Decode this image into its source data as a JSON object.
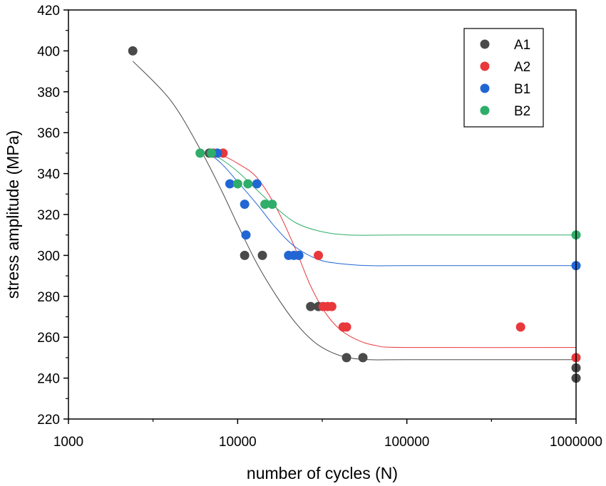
{
  "chart_data": {
    "type": "scatter",
    "xlabel": "number of cycles (N)",
    "ylabel": "stress amplitude (MPa)",
    "xscale": "log",
    "xlim": [
      1000,
      1000000
    ],
    "ylim": [
      220,
      420
    ],
    "x_ticks": [
      1000,
      10000,
      100000,
      1000000
    ],
    "x_tick_labels": [
      "1000",
      "10000",
      "100000",
      "1000000"
    ],
    "y_ticks": [
      220,
      240,
      260,
      280,
      300,
      320,
      340,
      360,
      380,
      400,
      420
    ],
    "y_tick_labels": [
      "220",
      "240",
      "260",
      "280",
      "300",
      "320",
      "340",
      "360",
      "380",
      "400",
      "420"
    ],
    "legend_position": "top-right",
    "grid": false,
    "series": [
      {
        "name": "A1",
        "color": "#4a4a4a",
        "points": [
          [
            2400,
            400
          ],
          [
            6800,
            350
          ],
          [
            11000,
            300
          ],
          [
            14000,
            300
          ],
          [
            27000,
            275
          ],
          [
            30000,
            275
          ],
          [
            44000,
            250
          ],
          [
            55000,
            250
          ],
          [
            1000000,
            245
          ],
          [
            1000000,
            240
          ]
        ],
        "fit_curve": [
          [
            2400,
            395
          ],
          [
            4000,
            376
          ],
          [
            6000,
            352
          ],
          [
            8000,
            332
          ],
          [
            10000,
            315
          ],
          [
            13000,
            296
          ],
          [
            17000,
            280
          ],
          [
            22000,
            267
          ],
          [
            28000,
            258
          ],
          [
            35000,
            253
          ],
          [
            45000,
            250
          ],
          [
            60000,
            249
          ],
          [
            100000,
            249
          ],
          [
            1000000,
            249
          ]
        ]
      },
      {
        "name": "A2",
        "color": "#e8383b",
        "points": [
          [
            7200,
            350
          ],
          [
            8200,
            350
          ],
          [
            30000,
            300
          ],
          [
            32000,
            275
          ],
          [
            34000,
            275
          ],
          [
            36000,
            275
          ],
          [
            42000,
            265
          ],
          [
            44000,
            265
          ],
          [
            470000,
            265
          ],
          [
            1000000,
            250
          ]
        ],
        "fit_curve": [
          [
            6500,
            350
          ],
          [
            8000,
            349
          ],
          [
            10000,
            345
          ],
          [
            13000,
            338
          ],
          [
            17000,
            323
          ],
          [
            22000,
            303
          ],
          [
            27000,
            285
          ],
          [
            33000,
            272
          ],
          [
            40000,
            264
          ],
          [
            50000,
            259
          ],
          [
            65000,
            256
          ],
          [
            100000,
            255
          ],
          [
            1000000,
            255
          ]
        ]
      },
      {
        "name": "B1",
        "color": "#2266d4",
        "points": [
          [
            7600,
            350
          ],
          [
            9000,
            335
          ],
          [
            11000,
            325
          ],
          [
            11200,
            310
          ],
          [
            13000,
            335
          ],
          [
            20000,
            300
          ],
          [
            21500,
            300
          ],
          [
            23000,
            300
          ],
          [
            1000000,
            295
          ]
        ],
        "fit_curve": [
          [
            6500,
            351
          ],
          [
            8000,
            345
          ],
          [
            10000,
            336
          ],
          [
            13000,
            325
          ],
          [
            17000,
            313
          ],
          [
            22000,
            304
          ],
          [
            30000,
            298
          ],
          [
            40000,
            296
          ],
          [
            60000,
            295
          ],
          [
            100000,
            295
          ],
          [
            1000000,
            295
          ]
        ]
      },
      {
        "name": "B2",
        "color": "#2fad6a",
        "points": [
          [
            6000,
            350
          ],
          [
            7000,
            350
          ],
          [
            10000,
            335
          ],
          [
            11500,
            335
          ],
          [
            14500,
            325
          ],
          [
            16000,
            325
          ],
          [
            1000000,
            310
          ]
        ],
        "fit_curve": [
          [
            6500,
            351
          ],
          [
            8000,
            347
          ],
          [
            10000,
            341
          ],
          [
            13000,
            332
          ],
          [
            17000,
            323
          ],
          [
            22000,
            316
          ],
          [
            30000,
            312
          ],
          [
            45000,
            310
          ],
          [
            100000,
            310
          ],
          [
            1000000,
            310
          ]
        ]
      }
    ]
  }
}
